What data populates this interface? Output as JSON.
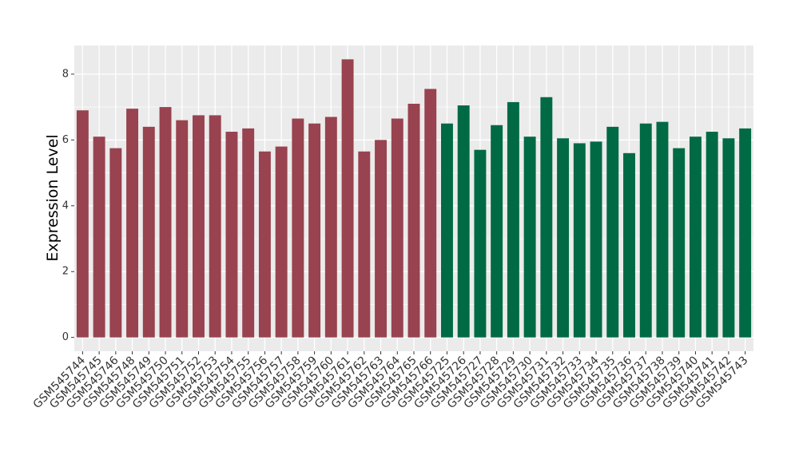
{
  "chart_data": {
    "type": "bar",
    "ylabel": "Expression Level",
    "categories": [
      "GSM545744",
      "GSM545745",
      "GSM545746",
      "GSM545748",
      "GSM545749",
      "GSM545750",
      "GSM545751",
      "GSM545752",
      "GSM545753",
      "GSM545754",
      "GSM545755",
      "GSM545756",
      "GSM545757",
      "GSM545758",
      "GSM545759",
      "GSM545760",
      "GSM545761",
      "GSM545762",
      "GSM545763",
      "GSM545764",
      "GSM545765",
      "GSM545766",
      "GSM545725",
      "GSM545726",
      "GSM545727",
      "GSM545728",
      "GSM545729",
      "GSM545730",
      "GSM545731",
      "GSM545732",
      "GSM545733",
      "GSM545734",
      "GSM545735",
      "GSM545736",
      "GSM545737",
      "GSM545738",
      "GSM545739",
      "GSM545740",
      "GSM545741",
      "GSM545742",
      "GSM545743"
    ],
    "series": [
      {
        "color": "#98434f",
        "values": [
          6.9,
          6.1,
          5.75,
          6.95,
          6.4,
          7.0,
          6.6,
          6.75,
          6.75,
          6.25,
          6.35,
          5.65,
          5.8,
          6.65,
          6.5,
          6.7,
          8.45,
          5.65,
          6.0,
          6.65,
          7.1,
          7.55,
          null,
          null,
          null,
          null,
          null,
          null,
          null,
          null,
          null,
          null,
          null,
          null,
          null,
          null,
          null,
          null,
          null,
          null,
          null
        ]
      },
      {
        "color": "#006a45",
        "values": [
          null,
          null,
          null,
          null,
          null,
          null,
          null,
          null,
          null,
          null,
          null,
          null,
          null,
          null,
          null,
          null,
          null,
          null,
          null,
          null,
          null,
          null,
          6.5,
          7.05,
          5.7,
          6.45,
          7.15,
          6.1,
          7.3,
          6.05,
          5.9,
          5.95,
          6.4,
          5.6,
          6.5,
          6.55,
          5.75,
          6.1,
          6.25,
          6.05,
          6.35
        ]
      }
    ],
    "ylim": [
      -0.42,
      8.87
    ],
    "yticks": [
      0,
      2,
      4,
      6,
      8
    ],
    "grid": true
  }
}
